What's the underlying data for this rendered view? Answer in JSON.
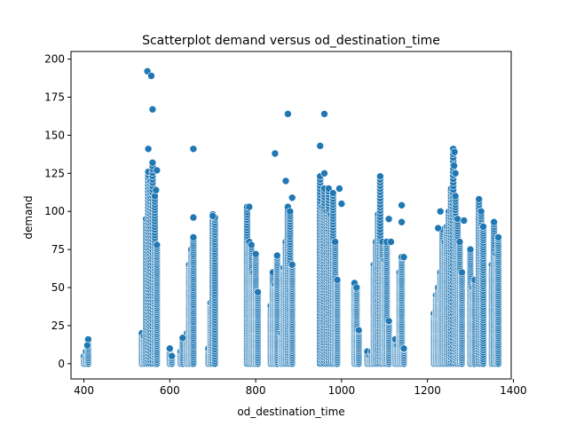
{
  "chart_data": {
    "type": "scatter",
    "title": "Scatterplot demand versus od_destination_time",
    "xlabel": "od_destination_time",
    "ylabel": "demand",
    "xlim": [
      370,
      1395
    ],
    "ylim": [
      -10,
      205
    ],
    "xticks": [
      400,
      600,
      800,
      1000,
      1200,
      1400
    ],
    "yticks": [
      0,
      25,
      50,
      75,
      100,
      125,
      150,
      175,
      200
    ],
    "grid": false,
    "marker_color": "#1f77b4",
    "columns": [
      {
        "x": 400,
        "ymax": 5
      },
      {
        "x": 405,
        "ymax": 8
      },
      {
        "x": 410,
        "ymax": 16
      },
      {
        "x": 535,
        "ymax": 20
      },
      {
        "x": 540,
        "ymax": 18
      },
      {
        "x": 545,
        "ymax": 95
      },
      {
        "x": 550,
        "ymax": 126
      },
      {
        "x": 555,
        "ymax": 120
      },
      {
        "x": 560,
        "ymax": 132
      },
      {
        "x": 565,
        "ymax": 110
      },
      {
        "x": 570,
        "ymax": 78
      },
      {
        "x": 600,
        "ymax": 10
      },
      {
        "x": 605,
        "ymax": 5
      },
      {
        "x": 625,
        "ymax": 8
      },
      {
        "x": 630,
        "ymax": 17
      },
      {
        "x": 640,
        "ymax": 20
      },
      {
        "x": 645,
        "ymax": 65
      },
      {
        "x": 650,
        "ymax": 75
      },
      {
        "x": 655,
        "ymax": 83
      },
      {
        "x": 690,
        "ymax": 10
      },
      {
        "x": 695,
        "ymax": 40
      },
      {
        "x": 700,
        "ymax": 98
      },
      {
        "x": 705,
        "ymax": 96
      },
      {
        "x": 780,
        "ymax": 103
      },
      {
        "x": 785,
        "ymax": 80
      },
      {
        "x": 790,
        "ymax": 78
      },
      {
        "x": 795,
        "ymax": 60
      },
      {
        "x": 800,
        "ymax": 72
      },
      {
        "x": 805,
        "ymax": 47
      },
      {
        "x": 835,
        "ymax": 38
      },
      {
        "x": 840,
        "ymax": 60
      },
      {
        "x": 845,
        "ymax": 52
      },
      {
        "x": 850,
        "ymax": 71
      },
      {
        "x": 860,
        "ymax": 20
      },
      {
        "x": 865,
        "ymax": 63
      },
      {
        "x": 870,
        "ymax": 80
      },
      {
        "x": 875,
        "ymax": 103
      },
      {
        "x": 880,
        "ymax": 100
      },
      {
        "x": 885,
        "ymax": 65
      },
      {
        "x": 950,
        "ymax": 123
      },
      {
        "x": 955,
        "ymax": 103
      },
      {
        "x": 960,
        "ymax": 115
      },
      {
        "x": 965,
        "ymax": 100
      },
      {
        "x": 970,
        "ymax": 115
      },
      {
        "x": 975,
        "ymax": 98
      },
      {
        "x": 980,
        "ymax": 112
      },
      {
        "x": 985,
        "ymax": 80
      },
      {
        "x": 990,
        "ymax": 55
      },
      {
        "x": 1030,
        "ymax": 53
      },
      {
        "x": 1035,
        "ymax": 50
      },
      {
        "x": 1040,
        "ymax": 22
      },
      {
        "x": 1060,
        "ymax": 8
      },
      {
        "x": 1065,
        "ymax": 5
      },
      {
        "x": 1070,
        "ymax": 8
      },
      {
        "x": 1075,
        "ymax": 65
      },
      {
        "x": 1080,
        "ymax": 80
      },
      {
        "x": 1085,
        "ymax": 98
      },
      {
        "x": 1090,
        "ymax": 123
      },
      {
        "x": 1095,
        "ymax": 80
      },
      {
        "x": 1100,
        "ymax": 68
      },
      {
        "x": 1105,
        "ymax": 80
      },
      {
        "x": 1110,
        "ymax": 28
      },
      {
        "x": 1125,
        "ymax": 16
      },
      {
        "x": 1130,
        "ymax": 12
      },
      {
        "x": 1135,
        "ymax": 60
      },
      {
        "x": 1140,
        "ymax": 70
      },
      {
        "x": 1145,
        "ymax": 10
      },
      {
        "x": 1215,
        "ymax": 33
      },
      {
        "x": 1220,
        "ymax": 45
      },
      {
        "x": 1225,
        "ymax": 50
      },
      {
        "x": 1230,
        "ymax": 60
      },
      {
        "x": 1235,
        "ymax": 88
      },
      {
        "x": 1240,
        "ymax": 80
      },
      {
        "x": 1245,
        "ymax": 90
      },
      {
        "x": 1250,
        "ymax": 100
      },
      {
        "x": 1255,
        "ymax": 115
      },
      {
        "x": 1260,
        "ymax": 140
      },
      {
        "x": 1265,
        "ymax": 110
      },
      {
        "x": 1270,
        "ymax": 95
      },
      {
        "x": 1275,
        "ymax": 80
      },
      {
        "x": 1280,
        "ymax": 60
      },
      {
        "x": 1300,
        "ymax": 75
      },
      {
        "x": 1305,
        "ymax": 50
      },
      {
        "x": 1310,
        "ymax": 55
      },
      {
        "x": 1320,
        "ymax": 108
      },
      {
        "x": 1325,
        "ymax": 100
      },
      {
        "x": 1330,
        "ymax": 90
      },
      {
        "x": 1350,
        "ymax": 65
      },
      {
        "x": 1355,
        "ymax": 93
      },
      {
        "x": 1360,
        "ymax": 72
      },
      {
        "x": 1365,
        "ymax": 83
      }
    ],
    "outliers": [
      {
        "x": 548,
        "y": 192
      },
      {
        "x": 557,
        "y": 189
      },
      {
        "x": 560,
        "y": 167
      },
      {
        "x": 550,
        "y": 141
      },
      {
        "x": 655,
        "y": 141
      },
      {
        "x": 845,
        "y": 138
      },
      {
        "x": 875,
        "y": 164
      },
      {
        "x": 960,
        "y": 164
      },
      {
        "x": 950,
        "y": 143
      },
      {
        "x": 960,
        "y": 125
      },
      {
        "x": 870,
        "y": 120
      },
      {
        "x": 1260,
        "y": 141
      },
      {
        "x": 1263,
        "y": 139
      },
      {
        "x": 1262,
        "y": 130
      },
      {
        "x": 1265,
        "y": 125
      },
      {
        "x": 1090,
        "y": 123
      },
      {
        "x": 1140,
        "y": 104
      },
      {
        "x": 1140,
        "y": 93
      },
      {
        "x": 1145,
        "y": 70
      },
      {
        "x": 1355,
        "y": 93
      },
      {
        "x": 1365,
        "y": 83
      },
      {
        "x": 1230,
        "y": 100
      },
      {
        "x": 1225,
        "y": 89
      },
      {
        "x": 1285,
        "y": 94
      },
      {
        "x": 570,
        "y": 127
      },
      {
        "x": 568,
        "y": 114
      },
      {
        "x": 1000,
        "y": 105
      },
      {
        "x": 995,
        "y": 115
      },
      {
        "x": 1110,
        "y": 95
      },
      {
        "x": 1115,
        "y": 80
      },
      {
        "x": 885,
        "y": 109
      },
      {
        "x": 785,
        "y": 103
      },
      {
        "x": 600,
        "y": 10
      },
      {
        "x": 630,
        "y": 17
      },
      {
        "x": 410,
        "y": 16
      },
      {
        "x": 408,
        "y": 12
      },
      {
        "x": 700,
        "y": 97
      },
      {
        "x": 655,
        "y": 96
      }
    ]
  }
}
